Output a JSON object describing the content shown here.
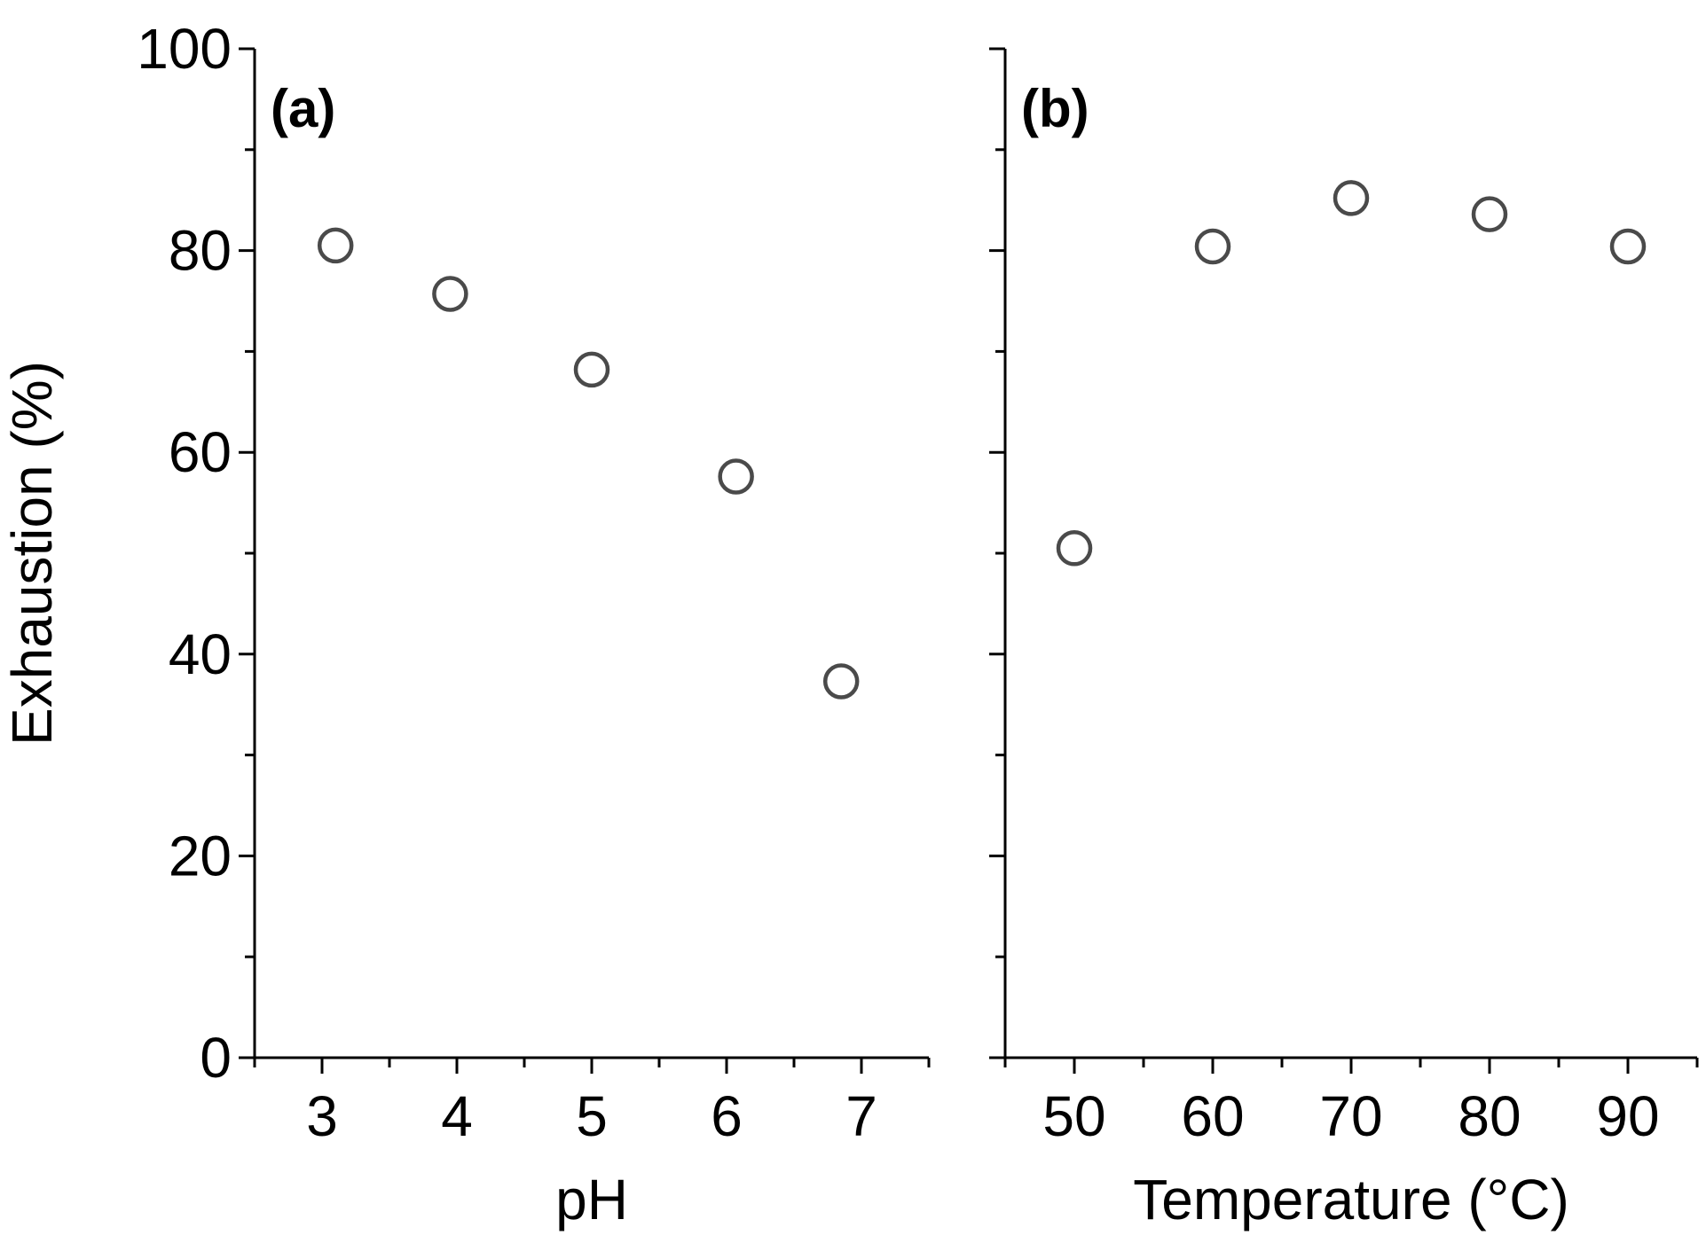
{
  "chart_data": [
    {
      "type": "scatter",
      "panel_label": "(a)",
      "xlabel": "pH",
      "ylabel": "Exhaustion (%)",
      "xlim": [
        2.5,
        7.5
      ],
      "ylim": [
        0,
        100
      ],
      "x_ticks": [
        "3",
        "4",
        "5",
        "6",
        "7"
      ],
      "y_ticks": [
        "0",
        "20",
        "40",
        "60",
        "80",
        "100"
      ],
      "grid": false,
      "marker": "open-circle",
      "points": [
        {
          "x": 3.1,
          "y": 80.5
        },
        {
          "x": 3.95,
          "y": 75.7
        },
        {
          "x": 5.0,
          "y": 68.2
        },
        {
          "x": 6.07,
          "y": 57.6
        },
        {
          "x": 6.85,
          "y": 37.3
        }
      ]
    },
    {
      "type": "scatter",
      "panel_label": "(b)",
      "xlabel": "Temperature (°C)",
      "ylabel": "",
      "xlim": [
        45,
        95
      ],
      "ylim": [
        0,
        100
      ],
      "x_ticks": [
        "50",
        "60",
        "70",
        "80",
        "90"
      ],
      "y_ticks": [],
      "grid": false,
      "marker": "open-circle",
      "points": [
        {
          "x": 50,
          "y": 50.5
        },
        {
          "x": 60,
          "y": 80.4
        },
        {
          "x": 70,
          "y": 85.2
        },
        {
          "x": 80,
          "y": 83.6
        },
        {
          "x": 90,
          "y": 80.4
        }
      ]
    }
  ]
}
